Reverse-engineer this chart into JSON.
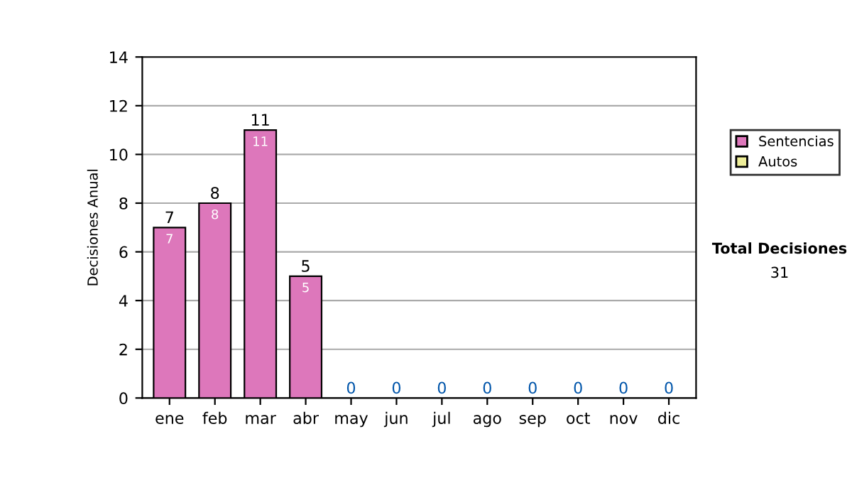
{
  "chart_data": {
    "type": "bar",
    "stacked": true,
    "ylabel": "Decisiones Anual",
    "categories": [
      "ene",
      "feb",
      "mar",
      "abr",
      "may",
      "jun",
      "jul",
      "ago",
      "sep",
      "oct",
      "nov",
      "dic"
    ],
    "series": [
      {
        "name": "Sentencias",
        "color": "#dd77bb",
        "values": [
          7,
          8,
          11,
          5,
          0,
          0,
          0,
          0,
          0,
          0,
          0,
          0
        ],
        "value_labels": [
          "7",
          "8",
          "11",
          "5",
          null,
          null,
          null,
          null,
          null,
          null,
          null,
          null
        ]
      },
      {
        "name": "Autos",
        "color": "#eeee99",
        "values": [
          0,
          0,
          0,
          0,
          0,
          0,
          0,
          0,
          0,
          0,
          0,
          0
        ]
      }
    ],
    "totals": [
      "7",
      "8",
      "11",
      "5",
      "0",
      "0",
      "0",
      "0",
      "0",
      "0",
      "0",
      "0"
    ],
    "ylim": [
      0,
      14
    ],
    "yticks": [
      0,
      2,
      4,
      6,
      8,
      10,
      12,
      14
    ],
    "grid": "y",
    "legend": "right",
    "annotations": [
      "Total Decisiones",
      "31"
    ]
  }
}
